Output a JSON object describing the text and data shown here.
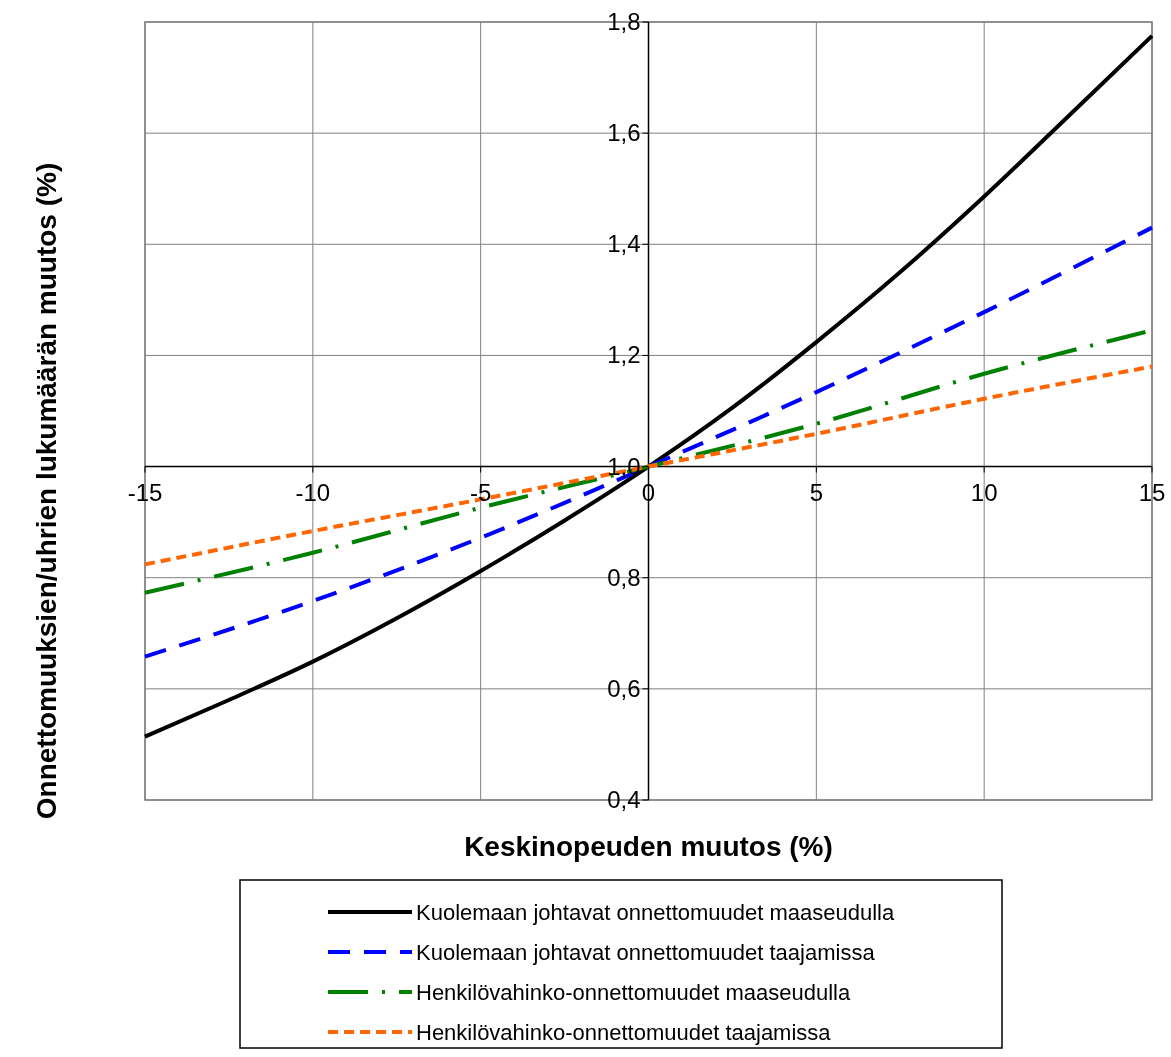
{
  "chart_data": {
    "type": "line",
    "xlabel": "Keskinopeuden muutos (%)",
    "ylabel": "Onnettomuuksien/uhrien lukumäärän muutos (%)",
    "xlim": [
      -15,
      15
    ],
    "xticks": [
      -15,
      -10,
      -5,
      0,
      5,
      10,
      15
    ],
    "ylim": [
      0.4,
      1.8
    ],
    "yticks": [
      {
        "value": 0.4,
        "label": "0,4"
      },
      {
        "value": 0.6,
        "label": "0,6"
      },
      {
        "value": 0.8,
        "label": "0,8"
      },
      {
        "value": 1.0,
        "label": "1,0"
      },
      {
        "value": 1.2,
        "label": "1,2"
      },
      {
        "value": 1.4,
        "label": "1,4"
      },
      {
        "value": 1.6,
        "label": "1,6"
      },
      {
        "value": 1.8,
        "label": "1,8"
      }
    ],
    "grid": true,
    "legend": "bottom",
    "series": [
      {
        "name": "Kuolemaan johtavat onnettomuudet maaseudulla",
        "color": "#000000",
        "line_style": "solid",
        "x": [
          -15,
          -12.5,
          -10,
          -7.5,
          -5,
          -2.5,
          0,
          2.5,
          5,
          7.5,
          10,
          12.5,
          15
        ],
        "values": [
          0.514,
          0.58,
          0.649,
          0.727,
          0.812,
          0.903,
          1,
          1.106,
          1.224,
          1.35,
          1.486,
          1.63,
          1.775
        ]
      },
      {
        "name": "Kuolemaan johtavat onnettomuudet taajamissa",
        "color": "#0000ff",
        "line_style": "dashed",
        "x": [
          -15,
          -10,
          -5,
          0,
          5,
          10,
          15
        ],
        "values": [
          0.658,
          0.758,
          0.872,
          1,
          1.134,
          1.278,
          1.43
        ]
      },
      {
        "name": "Henkilövahinko-onnettomuudet maaseudulla",
        "color": "#008000",
        "line_style": "dashdot",
        "x": [
          -15,
          -10,
          -5,
          0,
          5,
          10,
          15
        ],
        "values": [
          0.773,
          0.845,
          0.926,
          1,
          1.077,
          1.167,
          1.245
        ]
      },
      {
        "name": "Henkilövahinko-onnettomuudet taajamissa",
        "color": "#ff6600",
        "line_style": "dotted",
        "x": [
          -15,
          -10,
          -5,
          0,
          5,
          10,
          15
        ],
        "values": [
          0.824,
          0.884,
          0.941,
          1,
          1.059,
          1.122,
          1.18
        ]
      }
    ]
  }
}
